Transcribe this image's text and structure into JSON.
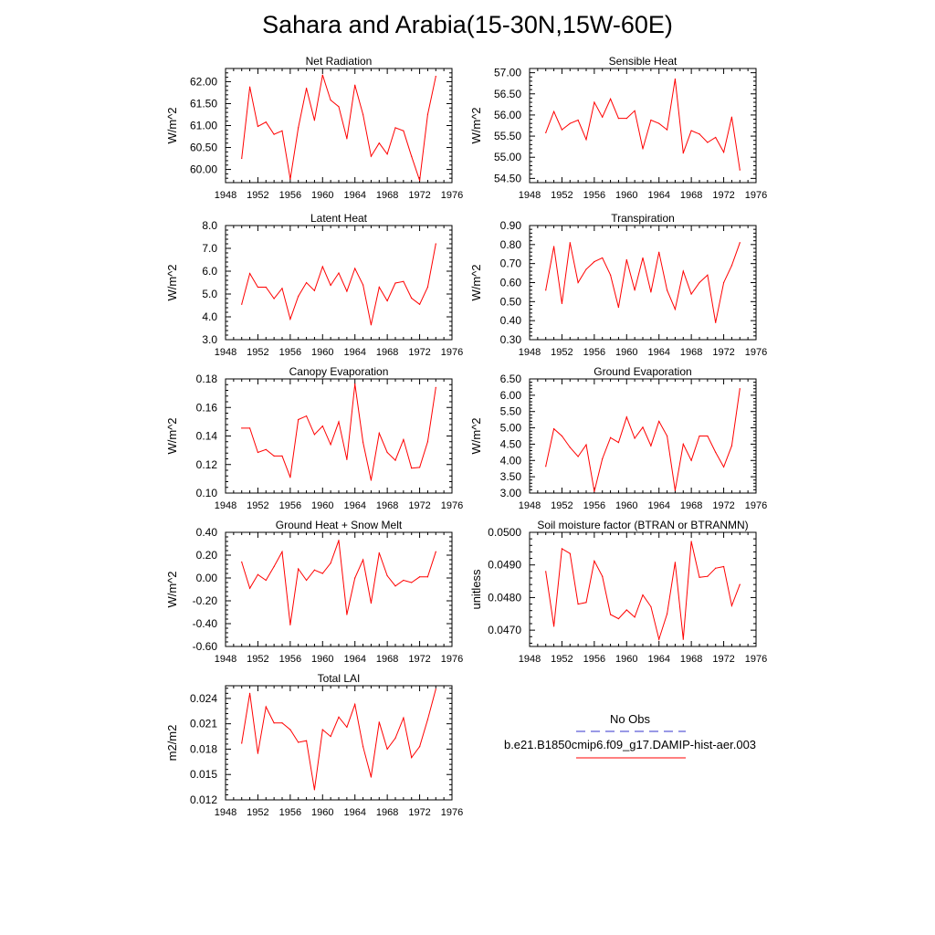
{
  "title": "Sahara and Arabia(15-30N,15W-60E)",
  "style": {
    "line_color": "#ff0000",
    "obs_color": "#3333cc"
  },
  "legend": {
    "obs_label": "No Obs",
    "model_label": "b.e21.B1850cmip6.f09_g17.DAMIP-hist-aer.003"
  },
  "chart_data": [
    {
      "type": "line",
      "title": "Net Radiation",
      "ylabel": "W/m^2",
      "xlim": [
        1948,
        1976
      ],
      "xticks": [
        1948,
        1952,
        1956,
        1960,
        1964,
        1968,
        1972,
        1976
      ],
      "ylim": [
        59.7,
        62.3
      ],
      "yticks": [
        60.0,
        60.5,
        61.0,
        61.5,
        62.0
      ],
      "ytick_labels": [
        "60.00",
        "60.50",
        "61.00",
        "61.50",
        "62.00"
      ],
      "x": [
        1950,
        1951,
        1952,
        1953,
        1954,
        1955,
        1956,
        1957,
        1958,
        1959,
        1960,
        1961,
        1962,
        1963,
        1964,
        1965,
        1966,
        1967,
        1968,
        1969,
        1970,
        1971,
        1972,
        1973,
        1974
      ],
      "values": [
        60.25,
        61.88,
        60.98,
        61.08,
        60.8,
        60.88,
        59.78,
        60.95,
        61.85,
        61.12,
        62.15,
        61.58,
        61.43,
        60.7,
        61.92,
        61.25,
        60.3,
        60.6,
        60.35,
        60.95,
        60.88,
        60.3,
        59.75,
        61.25,
        62.12
      ]
    },
    {
      "type": "line",
      "title": "Sensible Heat",
      "ylabel": "W/m^2",
      "xlim": [
        1948,
        1976
      ],
      "xticks": [
        1948,
        1952,
        1956,
        1960,
        1964,
        1968,
        1972,
        1976
      ],
      "ylim": [
        54.4,
        57.1
      ],
      "yticks": [
        54.5,
        55.0,
        55.5,
        56.0,
        56.5,
        57.0
      ],
      "ytick_labels": [
        "54.50",
        "55.00",
        "55.50",
        "56.00",
        "56.50",
        "57.00"
      ],
      "x": [
        1950,
        1951,
        1952,
        1953,
        1954,
        1955,
        1956,
        1957,
        1958,
        1959,
        1960,
        1961,
        1962,
        1963,
        1964,
        1965,
        1966,
        1967,
        1968,
        1969,
        1970,
        1971,
        1972,
        1973,
        1974
      ],
      "values": [
        55.58,
        56.08,
        55.65,
        55.8,
        55.88,
        55.42,
        56.3,
        55.95,
        56.38,
        55.92,
        55.92,
        56.1,
        55.2,
        55.88,
        55.8,
        55.65,
        56.85,
        55.1,
        55.63,
        55.55,
        55.35,
        55.47,
        55.12,
        55.95,
        54.7
      ]
    },
    {
      "type": "line",
      "title": "Latent Heat",
      "ylabel": "W/m^2",
      "xlim": [
        1948,
        1976
      ],
      "xticks": [
        1948,
        1952,
        1956,
        1960,
        1964,
        1968,
        1972,
        1976
      ],
      "ylim": [
        3.0,
        8.0
      ],
      "yticks": [
        3,
        4,
        5,
        6,
        7,
        8
      ],
      "ytick_labels": [
        "3.0",
        "4.0",
        "5.0",
        "6.0",
        "7.0",
        "8.0"
      ],
      "x": [
        1950,
        1951,
        1952,
        1953,
        1954,
        1955,
        1956,
        1957,
        1958,
        1959,
        1960,
        1961,
        1962,
        1963,
        1964,
        1965,
        1966,
        1967,
        1968,
        1969,
        1970,
        1971,
        1972,
        1973,
        1974
      ],
      "values": [
        4.55,
        5.9,
        5.3,
        5.3,
        4.8,
        5.25,
        3.9,
        4.9,
        5.5,
        5.15,
        6.2,
        5.38,
        5.92,
        5.12,
        6.12,
        5.4,
        3.65,
        5.3,
        4.7,
        5.48,
        5.55,
        4.82,
        4.55,
        5.3,
        7.2
      ]
    },
    {
      "type": "line",
      "title": "Transpiration",
      "ylabel": "W/m^2",
      "xlim": [
        1948,
        1976
      ],
      "xticks": [
        1948,
        1952,
        1956,
        1960,
        1964,
        1968,
        1972,
        1976
      ],
      "ylim": [
        0.3,
        0.9
      ],
      "yticks": [
        0.3,
        0.4,
        0.5,
        0.6,
        0.7,
        0.8,
        0.9
      ],
      "ytick_labels": [
        "0.30",
        "0.40",
        "0.50",
        "0.60",
        "0.70",
        "0.80",
        "0.90"
      ],
      "x": [
        1950,
        1951,
        1952,
        1953,
        1954,
        1955,
        1956,
        1957,
        1958,
        1959,
        1960,
        1961,
        1962,
        1963,
        1964,
        1965,
        1966,
        1967,
        1968,
        1969,
        1970,
        1971,
        1972,
        1973,
        1974
      ],
      "values": [
        0.56,
        0.79,
        0.49,
        0.81,
        0.6,
        0.67,
        0.71,
        0.73,
        0.64,
        0.47,
        0.72,
        0.56,
        0.73,
        0.55,
        0.76,
        0.56,
        0.46,
        0.66,
        0.54,
        0.6,
        0.64,
        0.39,
        0.6,
        0.69,
        0.81
      ]
    },
    {
      "type": "line",
      "title": "Canopy Evaporation",
      "ylabel": "W/m^2",
      "xlim": [
        1948,
        1976
      ],
      "xticks": [
        1948,
        1952,
        1956,
        1960,
        1964,
        1968,
        1972,
        1976
      ],
      "ylim": [
        0.1,
        0.18
      ],
      "yticks": [
        0.1,
        0.12,
        0.14,
        0.16,
        0.18
      ],
      "ytick_labels": [
        "0.10",
        "0.12",
        "0.14",
        "0.16",
        "0.18"
      ],
      "x": [
        1950,
        1951,
        1952,
        1953,
        1954,
        1955,
        1956,
        1957,
        1958,
        1959,
        1960,
        1961,
        1962,
        1963,
        1964,
        1965,
        1966,
        1967,
        1968,
        1969,
        1970,
        1971,
        1972,
        1973,
        1974
      ],
      "values": [
        0.1455,
        0.1455,
        0.1285,
        0.1305,
        0.126,
        0.126,
        0.111,
        0.1515,
        0.154,
        0.141,
        0.147,
        0.134,
        0.15,
        0.1235,
        0.1765,
        0.1355,
        0.109,
        0.142,
        0.1285,
        0.123,
        0.1375,
        0.1175,
        0.118,
        0.136,
        0.174
      ]
    },
    {
      "type": "line",
      "title": "Ground Evaporation",
      "ylabel": "W/m^2",
      "xlim": [
        1948,
        1976
      ],
      "xticks": [
        1948,
        1952,
        1956,
        1960,
        1964,
        1968,
        1972,
        1976
      ],
      "ylim": [
        3.0,
        6.5
      ],
      "yticks": [
        3.0,
        3.5,
        4.0,
        4.5,
        5.0,
        5.5,
        6.0,
        6.5
      ],
      "ytick_labels": [
        "3.00",
        "3.50",
        "4.00",
        "4.50",
        "5.00",
        "5.50",
        "6.00",
        "6.50"
      ],
      "x": [
        1950,
        1951,
        1952,
        1953,
        1954,
        1955,
        1956,
        1957,
        1958,
        1959,
        1960,
        1961,
        1962,
        1963,
        1964,
        1965,
        1966,
        1967,
        1968,
        1969,
        1970,
        1971,
        1972,
        1973,
        1974
      ],
      "values": [
        3.82,
        4.97,
        4.75,
        4.4,
        4.12,
        4.48,
        3.05,
        4.05,
        4.7,
        4.55,
        5.33,
        4.68,
        5.02,
        4.45,
        5.2,
        4.75,
        3.08,
        4.5,
        4.0,
        4.75,
        4.75,
        4.25,
        3.8,
        4.45,
        6.2
      ]
    },
    {
      "type": "line",
      "title": "Ground Heat + Snow Melt",
      "ylabel": "W/m^2",
      "xlim": [
        1948,
        1976
      ],
      "xticks": [
        1948,
        1952,
        1956,
        1960,
        1964,
        1968,
        1972,
        1976
      ],
      "ylim": [
        -0.6,
        0.4
      ],
      "yticks": [
        -0.6,
        -0.4,
        -0.2,
        0.0,
        0.2,
        0.4
      ],
      "ytick_labels": [
        "-0.60",
        "-0.40",
        "-0.20",
        "0.00",
        "0.20",
        "0.40"
      ],
      "x": [
        1950,
        1951,
        1952,
        1953,
        1954,
        1955,
        1956,
        1957,
        1958,
        1959,
        1960,
        1961,
        1962,
        1963,
        1964,
        1965,
        1966,
        1967,
        1968,
        1969,
        1970,
        1971,
        1972,
        1973,
        1974
      ],
      "values": [
        0.14,
        -0.09,
        0.03,
        -0.02,
        0.1,
        0.23,
        -0.41,
        0.08,
        -0.02,
        0.07,
        0.04,
        0.13,
        0.33,
        -0.32,
        0.0,
        0.16,
        -0.22,
        0.22,
        0.02,
        -0.07,
        -0.02,
        -0.04,
        0.01,
        0.01,
        0.23
      ]
    },
    {
      "type": "line",
      "title": "Soil moisture factor (BTRAN or BTRANMN)",
      "ylabel": "unitless",
      "xlim": [
        1948,
        1976
      ],
      "xticks": [
        1948,
        1952,
        1956,
        1960,
        1964,
        1968,
        1972,
        1976
      ],
      "ylim": [
        0.0465,
        0.05
      ],
      "yticks": [
        0.047,
        0.048,
        0.049,
        0.05
      ],
      "ytick_labels": [
        "0.0470",
        "0.0480",
        "0.0490",
        "0.0500"
      ],
      "x": [
        1950,
        1951,
        1952,
        1953,
        1954,
        1955,
        1956,
        1957,
        1958,
        1959,
        1960,
        1961,
        1962,
        1963,
        1964,
        1965,
        1966,
        1967,
        1968,
        1969,
        1970,
        1971,
        1972,
        1973,
        1974
      ],
      "values": [
        0.0488,
        0.04712,
        0.0495,
        0.04935,
        0.0478,
        0.04785,
        0.04912,
        0.04865,
        0.04748,
        0.04735,
        0.04762,
        0.0474,
        0.04808,
        0.04772,
        0.04672,
        0.0475,
        0.04908,
        0.04672,
        0.04972,
        0.04862,
        0.04865,
        0.0489,
        0.04895,
        0.04775,
        0.0484
      ]
    },
    {
      "type": "line",
      "title": "Total LAI",
      "ylabel": "m2/m2",
      "xlim": [
        1948,
        1976
      ],
      "xticks": [
        1948,
        1952,
        1956,
        1960,
        1964,
        1968,
        1972,
        1976
      ],
      "ylim": [
        0.012,
        0.0255
      ],
      "yticks": [
        0.012,
        0.015,
        0.018,
        0.021,
        0.024
      ],
      "ytick_labels": [
        "0.012",
        "0.015",
        "0.018",
        "0.021",
        "0.024"
      ],
      "x": [
        1950,
        1951,
        1952,
        1953,
        1954,
        1955,
        1956,
        1957,
        1958,
        1959,
        1960,
        1961,
        1962,
        1963,
        1964,
        1965,
        1966,
        1967,
        1968,
        1969,
        1970,
        1971,
        1972,
        1973,
        1974
      ],
      "values": [
        0.0187,
        0.0246,
        0.0175,
        0.023,
        0.0211,
        0.0211,
        0.0203,
        0.0188,
        0.019,
        0.0132,
        0.0203,
        0.0195,
        0.0218,
        0.0206,
        0.0233,
        0.0183,
        0.0147,
        0.0212,
        0.018,
        0.0193,
        0.0217,
        0.017,
        0.0183,
        0.0215,
        0.0251
      ]
    }
  ]
}
